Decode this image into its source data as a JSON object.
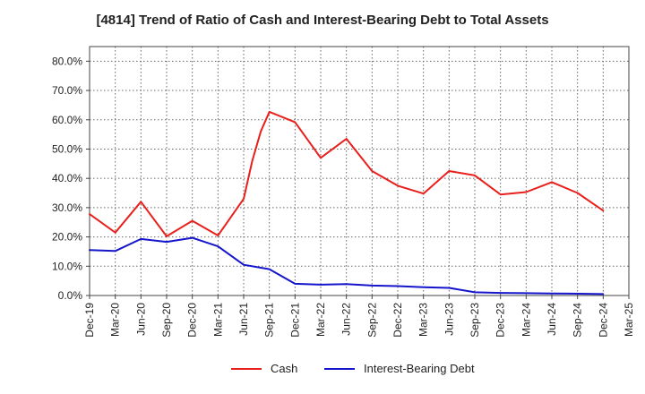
{
  "chart_data": {
    "type": "line",
    "title": "[4814]  Trend of Ratio of Cash and Interest-Bearing Debt to Total Assets",
    "xlabel": "",
    "ylabel": "",
    "x": [
      "Dec-19",
      "Mar-20",
      "Jun-20",
      "Sep-20",
      "Dec-20",
      "Mar-21",
      "Jun-21",
      "Sep-21",
      "Dec-21",
      "Mar-22",
      "Jun-22",
      "Sep-22",
      "Dec-22",
      "Mar-23",
      "Jun-23",
      "Sep-23",
      "Dec-23",
      "Mar-24",
      "Jun-24",
      "Sep-24",
      "Dec-24",
      "Mar-25"
    ],
    "ylim": [
      0,
      85
    ],
    "yticks": [
      0,
      10,
      20,
      30,
      40,
      50,
      60,
      70,
      80
    ],
    "ytick_labels": [
      "0.0%",
      "10.0%",
      "20.0%",
      "30.0%",
      "40.0%",
      "50.0%",
      "60.0%",
      "70.0%",
      "80.0%"
    ],
    "grid": true,
    "legend_position": "bottom",
    "series": [
      {
        "name": "Cash",
        "color": "#e8201c",
        "points": [
          [
            "Dec-19",
            27.8
          ],
          [
            "Mar-20",
            21.5
          ],
          [
            "Jun-20",
            32.0
          ],
          [
            "Sep-20",
            20.2
          ],
          [
            "Dec-20",
            25.5
          ],
          [
            "Mar-21",
            20.5
          ],
          [
            "Jun-21",
            33.0
          ],
          [
            "Jul-21",
            46.0
          ],
          [
            "Aug-21",
            56.0
          ],
          [
            "Sep-21",
            62.7
          ],
          [
            "Dec-21",
            59.2
          ],
          [
            "Mar-22",
            47.0
          ],
          [
            "Jun-22",
            53.5
          ],
          [
            "Sep-22",
            42.5
          ],
          [
            "Dec-22",
            37.5
          ],
          [
            "Mar-23",
            34.8
          ],
          [
            "Jun-23",
            42.5
          ],
          [
            "Sep-23",
            41.0
          ],
          [
            "Dec-23",
            34.5
          ],
          [
            "Mar-24",
            35.3
          ],
          [
            "Jun-24",
            38.7
          ],
          [
            "Sep-24",
            35.0
          ],
          [
            "Dec-24",
            29.0
          ]
        ]
      },
      {
        "name": "Interest-Bearing Debt",
        "color": "#1515cc",
        "points": [
          [
            "Dec-19",
            15.5
          ],
          [
            "Mar-20",
            15.2
          ],
          [
            "Jun-20",
            19.3
          ],
          [
            "Sep-20",
            18.3
          ],
          [
            "Dec-20",
            19.7
          ],
          [
            "Mar-21",
            16.8
          ],
          [
            "Jun-21",
            10.5
          ],
          [
            "Sep-21",
            9.0
          ],
          [
            "Dec-21",
            4.0
          ],
          [
            "Mar-22",
            3.7
          ],
          [
            "Jun-22",
            3.9
          ],
          [
            "Sep-22",
            3.4
          ],
          [
            "Dec-22",
            3.2
          ],
          [
            "Mar-23",
            2.8
          ],
          [
            "Jun-23",
            2.6
          ],
          [
            "Sep-23",
            1.1
          ],
          [
            "Dec-23",
            0.9
          ],
          [
            "Mar-24",
            0.8
          ],
          [
            "Jun-24",
            0.7
          ],
          [
            "Sep-24",
            0.6
          ],
          [
            "Dec-24",
            0.5
          ]
        ]
      }
    ]
  }
}
